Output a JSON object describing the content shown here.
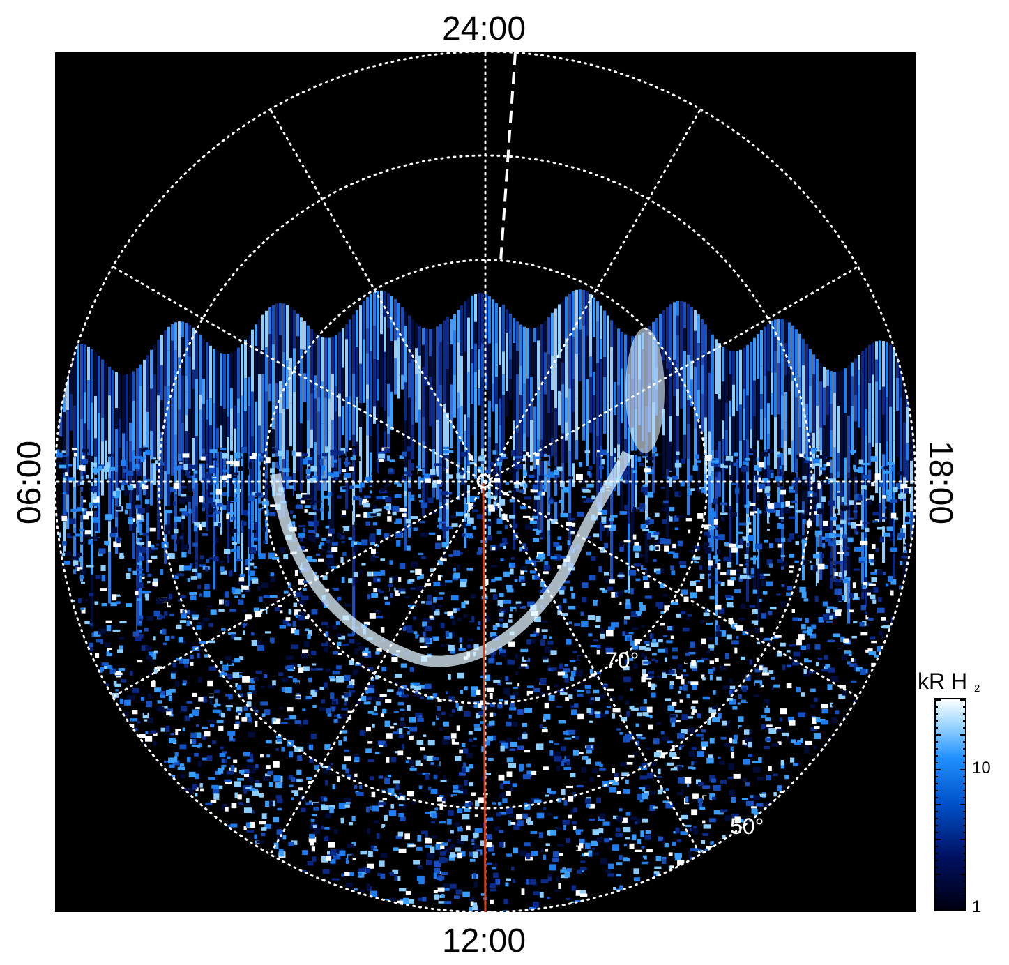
{
  "figure": {
    "local_time_labels": {
      "top": "24:00",
      "left": "06:00",
      "right": "18:00",
      "bottom": "12:00"
    },
    "latitude_labels": {
      "inner": "70°",
      "outer": "50°"
    },
    "colorbar": {
      "title_main": "kR H",
      "title_sub": "2",
      "tick_10": "10",
      "tick_1": "1",
      "scale": "log",
      "colors": [
        "#000010",
        "#001060",
        "#0050c8",
        "#2090ff",
        "#a0d8ff",
        "#ffffff"
      ]
    },
    "colors": {
      "background": "#000000",
      "grid": "#ffffff",
      "meridian_line": "#d2401c",
      "emission_dim": "#0a2a8a",
      "emission_mid": "#1e7ef0",
      "emission_bright": "#bfe6ff"
    }
  }
}
